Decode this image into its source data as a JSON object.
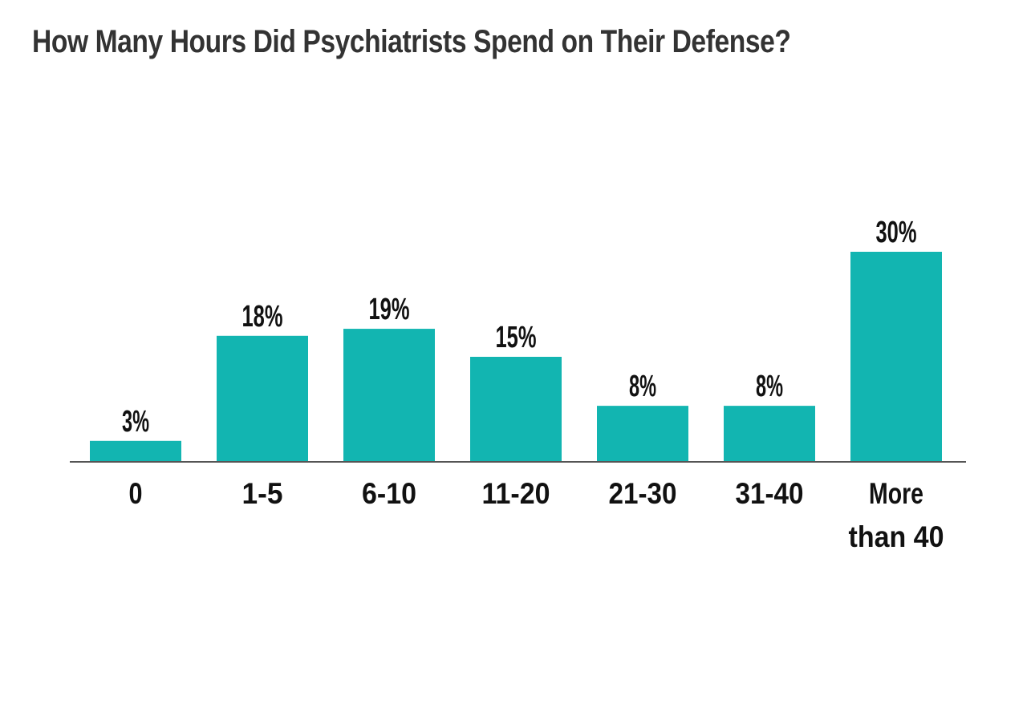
{
  "chart_data": {
    "type": "bar",
    "title": "How Many Hours Did Psychiatrists Spend on Their Defense?",
    "xlabel": "",
    "ylabel": "",
    "categories": [
      "0",
      "1-5",
      "6-10",
      "11-20",
      "21-30",
      "31-40",
      "More than 40"
    ],
    "category_lines": [
      [
        "0"
      ],
      [
        "1-5"
      ],
      [
        "6-10"
      ],
      [
        "11-20"
      ],
      [
        "21-30"
      ],
      [
        "31-40"
      ],
      [
        "More",
        "than 40"
      ]
    ],
    "values": [
      3,
      18,
      19,
      15,
      8,
      8,
      30
    ],
    "value_labels": [
      "3%",
      "18%",
      "19%",
      "15%",
      "8%",
      "8%",
      "30%"
    ],
    "ylim": [
      0,
      30
    ],
    "grid": false,
    "colors": {
      "bar": "#12b5b1",
      "axis": "#555555",
      "title": "#333333",
      "label": "#111111"
    }
  }
}
